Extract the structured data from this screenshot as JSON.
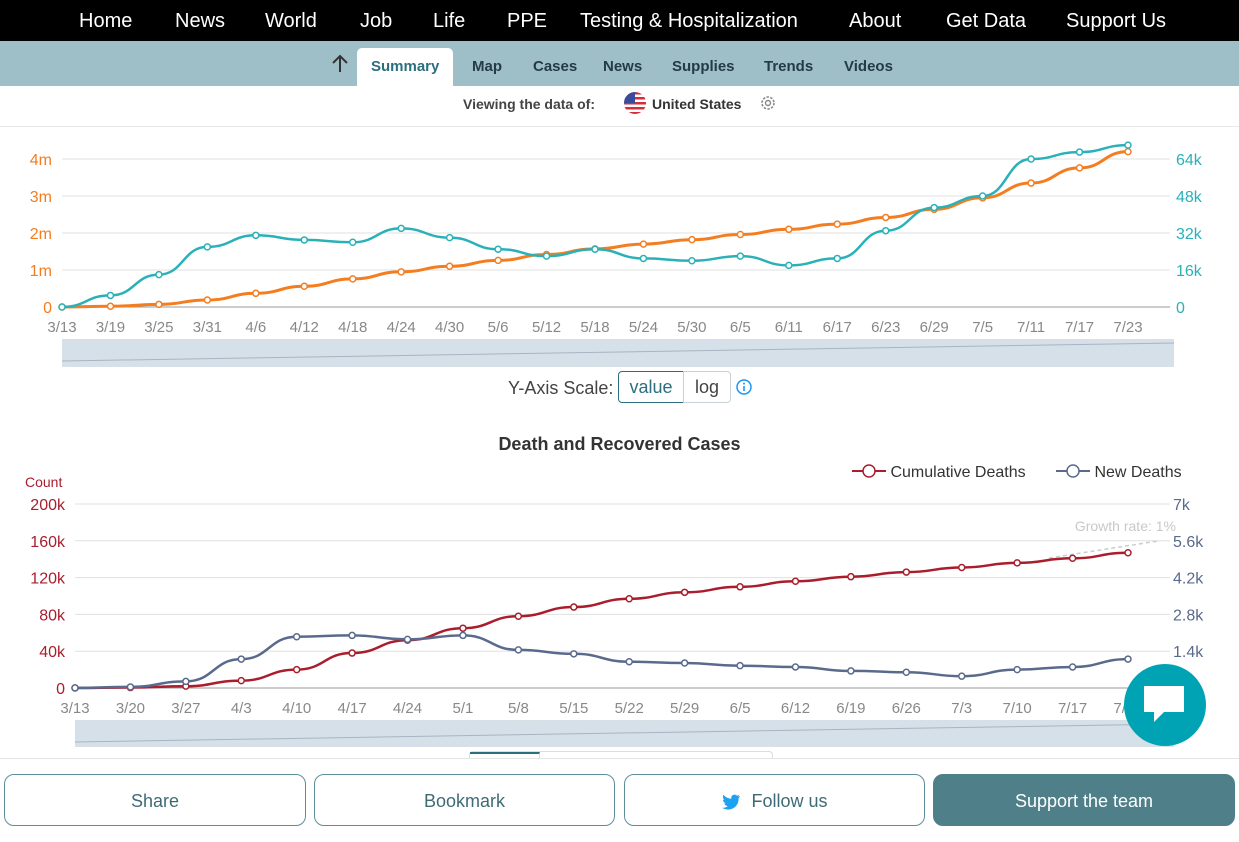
{
  "nav": {
    "items": [
      "Home",
      "News",
      "World",
      "Job",
      "Life",
      "PPE",
      "Testing & Hospitalization",
      "About",
      "Get Data",
      "Support Us"
    ]
  },
  "subnav": {
    "tabs": [
      "Summary",
      "Map",
      "Cases",
      "News",
      "Supplies",
      "Trends",
      "Videos"
    ],
    "active": "Summary"
  },
  "viewing": {
    "label": "Viewing the data of:",
    "country": "United States"
  },
  "chart_data": [
    {
      "type": "line",
      "title": "",
      "x": [
        "3/13",
        "3/19",
        "3/25",
        "3/31",
        "4/6",
        "4/12",
        "4/18",
        "4/24",
        "4/30",
        "5/6",
        "5/12",
        "5/18",
        "5/24",
        "5/30",
        "6/5",
        "6/11",
        "6/17",
        "6/23",
        "6/29",
        "7/5",
        "7/11",
        "7/17",
        "7/23"
      ],
      "y_left_ticks": [
        "0",
        "1m",
        "2m",
        "3m",
        "4m"
      ],
      "y_right_ticks": [
        "0",
        "16k",
        "32k",
        "48k",
        "64k"
      ],
      "series": [
        {
          "color": "#f47d20",
          "axis": "left",
          "values": [
            0,
            0.02,
            0.07,
            0.19,
            0.37,
            0.56,
            0.76,
            0.95,
            1.1,
            1.26,
            1.42,
            1.57,
            1.7,
            1.82,
            1.96,
            2.1,
            2.24,
            2.42,
            2.64,
            2.95,
            3.35,
            3.76,
            4.2
          ]
        },
        {
          "color": "#2ab1b8",
          "axis": "right",
          "values": [
            0,
            5000,
            14000,
            26000,
            31000,
            29000,
            28000,
            34000,
            30000,
            25000,
            22000,
            25000,
            21000,
            20000,
            22000,
            18000,
            21000,
            33000,
            43000,
            48000,
            64000,
            67000,
            70000
          ]
        }
      ]
    },
    {
      "type": "line",
      "title": "Death and Recovered Cases",
      "ylabel": "Count",
      "x": [
        "3/13",
        "3/20",
        "3/27",
        "4/3",
        "4/10",
        "4/17",
        "4/24",
        "5/1",
        "5/8",
        "5/15",
        "5/22",
        "5/29",
        "6/5",
        "6/12",
        "6/19",
        "6/26",
        "7/3",
        "7/10",
        "7/17",
        "7/24"
      ],
      "y_left_ticks": [
        "0",
        "40k",
        "80k",
        "120k",
        "160k",
        "200k"
      ],
      "y_right_ticks": [
        "1.4k",
        "2.8k",
        "4.2k",
        "5.6k",
        "7k"
      ],
      "annotation": "Growth rate: 1%",
      "series": [
        {
          "name": "Cumulative Deaths",
          "color": "#a91d2c",
          "axis": "left",
          "values": [
            50,
            500,
            2000,
            8000,
            20000,
            38000,
            52000,
            65000,
            78000,
            88000,
            97000,
            104000,
            110000,
            116000,
            121000,
            126000,
            131000,
            136000,
            141000,
            147000
          ]
        },
        {
          "name": "New Deaths",
          "color": "#5a6a8c",
          "axis": "right",
          "values": [
            5,
            40,
            250,
            1100,
            1950,
            2000,
            1850,
            2000,
            1450,
            1300,
            1000,
            950,
            850,
            800,
            650,
            600,
            450,
            700,
            800,
            1100
          ]
        }
      ]
    }
  ],
  "scale": {
    "label": "Y-Axis Scale:",
    "value": "value",
    "log": "log"
  },
  "buttons": {
    "share": "Share",
    "bookmark": "Bookmark",
    "follow": "Follow us",
    "support": "Support the team"
  },
  "colors": {
    "accent": "#2c6e7e",
    "subnav": "#9fbfc8",
    "chat": "#00a3b4"
  }
}
